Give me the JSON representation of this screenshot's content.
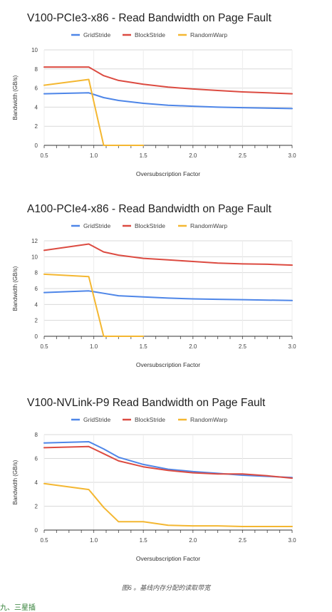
{
  "chart_data": [
    {
      "type": "line",
      "title": "V100-PCIe3-x86 - Read Bandwidth on Page Fault",
      "xlabel": "Oversubscription Factor",
      "ylabel": "Bandwidth (GB/s)",
      "xlim": [
        0.5,
        3.0
      ],
      "ylim": [
        0,
        10
      ],
      "xticks": [
        "0.5",
        "1.0",
        "1.5",
        "2.0",
        "2.5",
        "3.0"
      ],
      "yticks": [
        "0",
        "2",
        "4",
        "6",
        "8",
        "10"
      ],
      "grid": true,
      "legend": "top",
      "series": [
        {
          "name": "GridStride",
          "color": "#4e86e8",
          "x": [
            0.5,
            0.95,
            1.1,
            1.25,
            1.5,
            1.75,
            2.0,
            2.25,
            2.5,
            2.75,
            3.0
          ],
          "y": [
            5.4,
            5.5,
            5.0,
            4.7,
            4.4,
            4.2,
            4.1,
            4.0,
            3.95,
            3.9,
            3.85
          ]
        },
        {
          "name": "BlockStride",
          "color": "#dc4b41",
          "x": [
            0.5,
            0.95,
            1.1,
            1.25,
            1.5,
            1.75,
            2.0,
            2.25,
            2.5,
            2.75,
            3.0
          ],
          "y": [
            8.2,
            8.2,
            7.3,
            6.8,
            6.4,
            6.1,
            5.9,
            5.75,
            5.6,
            5.5,
            5.4
          ]
        },
        {
          "name": "RandomWarp",
          "color": "#f4b731",
          "x": [
            0.5,
            0.95,
            1.1,
            1.25,
            1.5
          ],
          "y": [
            6.3,
            6.9,
            0,
            0,
            0
          ]
        }
      ]
    },
    {
      "type": "line",
      "title": "A100-PCIe4-x86 - Read Bandwidth on Page Fault",
      "xlabel": "Oversubscription Factor",
      "ylabel": "Bandwidth (GB/s)",
      "xlim": [
        0.5,
        3.0
      ],
      "ylim": [
        0,
        12
      ],
      "xticks": [
        "0.5",
        "1.0",
        "1.5",
        "2.0",
        "2.5",
        "3.0"
      ],
      "yticks": [
        "0",
        "2",
        "4",
        "6",
        "8",
        "10",
        "12"
      ],
      "grid": true,
      "legend": "top",
      "series": [
        {
          "name": "GridStride",
          "color": "#4e86e8",
          "x": [
            0.5,
            0.95,
            1.1,
            1.25,
            1.5,
            1.75,
            2.0,
            2.25,
            2.5,
            2.75,
            3.0
          ],
          "y": [
            5.5,
            5.7,
            5.4,
            5.1,
            4.95,
            4.8,
            4.7,
            4.65,
            4.6,
            4.55,
            4.5
          ]
        },
        {
          "name": "BlockStride",
          "color": "#dc4b41",
          "x": [
            0.5,
            0.95,
            1.1,
            1.25,
            1.5,
            1.75,
            2.0,
            2.25,
            2.5,
            2.75,
            3.0
          ],
          "y": [
            10.8,
            11.6,
            10.6,
            10.2,
            9.8,
            9.6,
            9.4,
            9.2,
            9.1,
            9.05,
            8.95
          ]
        },
        {
          "name": "RandomWarp",
          "color": "#f4b731",
          "x": [
            0.5,
            0.95,
            1.1,
            1.25,
            1.5
          ],
          "y": [
            7.8,
            7.5,
            0,
            0,
            0
          ]
        }
      ]
    },
    {
      "type": "line",
      "title": "V100-NVLink-P9 Read Bandwidth on Page Fault",
      "xlabel": "Oversubscription Factor",
      "ylabel": "Bandwidth (GB/s)",
      "xlim": [
        0.5,
        3.0
      ],
      "ylim": [
        0,
        8
      ],
      "xticks": [
        "0.5",
        "1.0",
        "1.5",
        "2.0",
        "2.5",
        "3.0"
      ],
      "yticks": [
        "0",
        "2",
        "4",
        "6",
        "8"
      ],
      "grid": true,
      "legend": "top",
      "series": [
        {
          "name": "GridStride",
          "color": "#4e86e8",
          "x": [
            0.5,
            0.95,
            1.1,
            1.25,
            1.5,
            1.75,
            2.0,
            2.25,
            2.5,
            2.75,
            3.0
          ],
          "y": [
            7.3,
            7.4,
            6.8,
            6.1,
            5.5,
            5.1,
            4.9,
            4.75,
            4.6,
            4.5,
            4.4
          ]
        },
        {
          "name": "BlockStride",
          "color": "#dc4b41",
          "x": [
            0.5,
            0.95,
            1.1,
            1.25,
            1.5,
            1.75,
            2.0,
            2.25,
            2.5,
            2.75,
            3.0
          ],
          "y": [
            6.9,
            7.0,
            6.4,
            5.8,
            5.3,
            5.0,
            4.8,
            4.7,
            4.7,
            4.55,
            4.35
          ]
        },
        {
          "name": "RandomWarp",
          "color": "#f4b731",
          "x": [
            0.5,
            0.95,
            1.1,
            1.25,
            1.5,
            1.75,
            2.0,
            2.25,
            2.5,
            2.75,
            3.0
          ],
          "y": [
            3.9,
            3.4,
            1.9,
            0.7,
            0.7,
            0.4,
            0.35,
            0.35,
            0.3,
            0.3,
            0.3
          ]
        }
      ]
    }
  ],
  "caption": "图6 。基线内存分配的读取带宽",
  "footer_text": "九、三星插"
}
